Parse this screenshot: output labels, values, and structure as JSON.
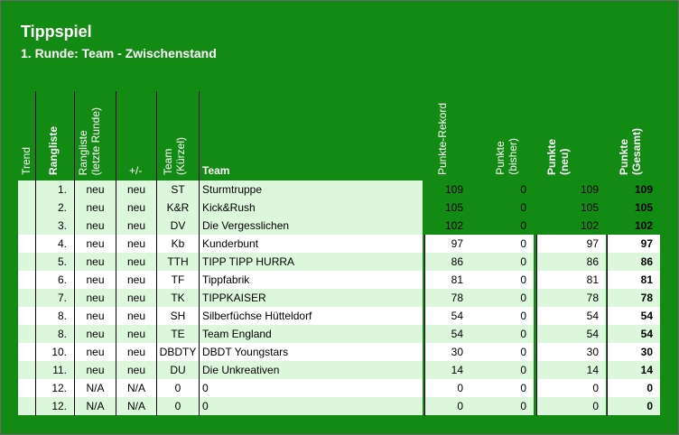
{
  "sheet": {
    "title": "Tippspiel",
    "subtitle": "1. Runde: Team - Zwischenstand"
  },
  "headers": {
    "trend": "Trend",
    "rangliste": "Rangliste",
    "rangliste_letzte_1": "Rangliste",
    "rangliste_letzte_2": "(letzte Runde)",
    "plus_minus": "+/-",
    "team_kurz_1": "Team",
    "team_kurz_2": "(Kürzel)",
    "team": "Team",
    "punkte_rekord": "Punkte-Rekord",
    "punkte_bisher_1": "Punkte",
    "punkte_bisher_2": "(bisher)",
    "punkte_neu_1": "Punkte",
    "punkte_neu_2": "(neu)",
    "punkte_gesamt_1": "Punkte",
    "punkte_gesamt_2": "(Gesamt)"
  },
  "colors": {
    "background": "#138a13",
    "row_light": "#ddf7dd",
    "row_white": "#ffffff"
  },
  "rows": [
    {
      "rank": "1.",
      "prev": "neu",
      "delta": "neu",
      "code": "ST",
      "team": "Sturmtruppe",
      "record": "109",
      "before": "0",
      "new": "109",
      "total": "109"
    },
    {
      "rank": "2.",
      "prev": "neu",
      "delta": "neu",
      "code": "K&R",
      "team": "Kick&Rush",
      "record": "105",
      "before": "0",
      "new": "105",
      "total": "105"
    },
    {
      "rank": "3.",
      "prev": "neu",
      "delta": "neu",
      "code": "DV",
      "team": "Die Vergesslichen",
      "record": "102",
      "before": "0",
      "new": "102",
      "total": "102"
    },
    {
      "rank": "4.",
      "prev": "neu",
      "delta": "neu",
      "code": "Kb",
      "team": "Kunderbunt",
      "record": "97",
      "before": "0",
      "new": "97",
      "total": "97"
    },
    {
      "rank": "5.",
      "prev": "neu",
      "delta": "neu",
      "code": "TTH",
      "team": "TIPP TIPP HURRA",
      "record": "86",
      "before": "0",
      "new": "86",
      "total": "86"
    },
    {
      "rank": "6.",
      "prev": "neu",
      "delta": "neu",
      "code": "TF",
      "team": "Tippfabrik",
      "record": "81",
      "before": "0",
      "new": "81",
      "total": "81"
    },
    {
      "rank": "7.",
      "prev": "neu",
      "delta": "neu",
      "code": "TK",
      "team": "TIPPKAISER",
      "record": "78",
      "before": "0",
      "new": "78",
      "total": "78"
    },
    {
      "rank": "8.",
      "prev": "neu",
      "delta": "neu",
      "code": "SH",
      "team": "Silberfüchse Hütteldorf",
      "record": "54",
      "before": "0",
      "new": "54",
      "total": "54"
    },
    {
      "rank": "8.",
      "prev": "neu",
      "delta": "neu",
      "code": "TE",
      "team": "Team England",
      "record": "54",
      "before": "0",
      "new": "54",
      "total": "54"
    },
    {
      "rank": "10.",
      "prev": "neu",
      "delta": "neu",
      "code": "DBDTY",
      "team": "DBDT Youngstars",
      "record": "30",
      "before": "0",
      "new": "30",
      "total": "30"
    },
    {
      "rank": "11.",
      "prev": "neu",
      "delta": "neu",
      "code": "DU",
      "team": "Die Unkreativen",
      "record": "14",
      "before": "0",
      "new": "14",
      "total": "14"
    },
    {
      "rank": "12.",
      "prev": "N/A",
      "delta": "N/A",
      "code": "0",
      "team": "0",
      "record": "0",
      "before": "0",
      "new": "0",
      "total": "0"
    },
    {
      "rank": "12.",
      "prev": "N/A",
      "delta": "N/A",
      "code": "0",
      "team": "0",
      "record": "0",
      "before": "0",
      "new": "0",
      "total": "0"
    }
  ]
}
